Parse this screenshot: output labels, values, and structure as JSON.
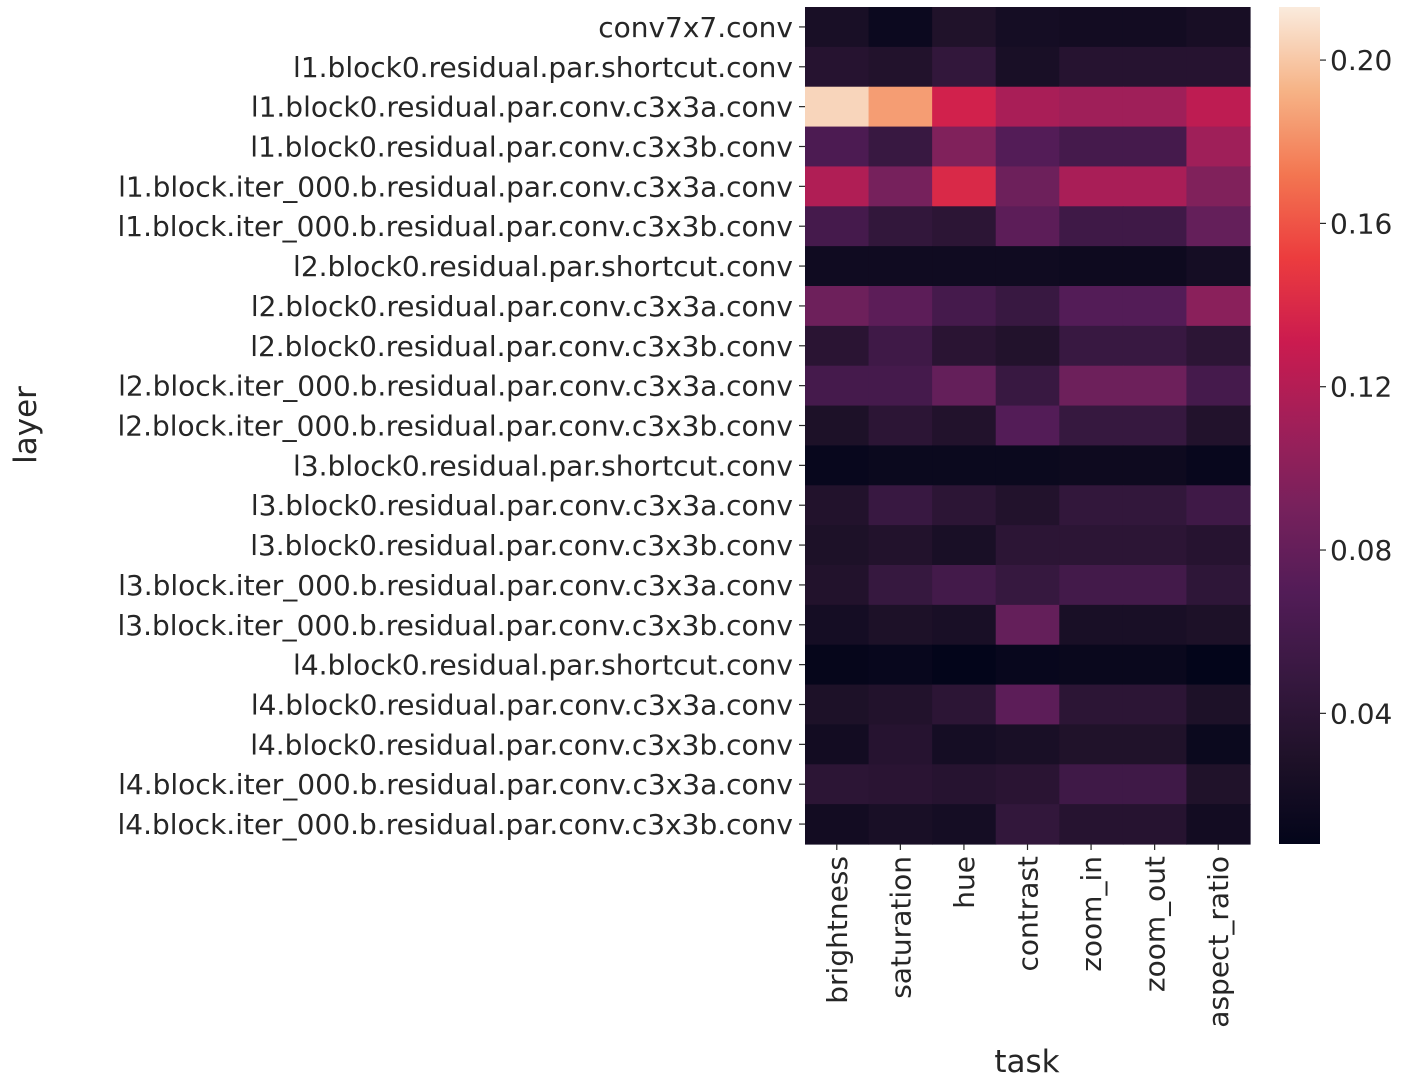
{
  "chart_data": {
    "type": "heatmap",
    "xlabel": "task",
    "ylabel": "layer",
    "x": [
      "brightness",
      "saturation",
      "hue",
      "contrast",
      "zoom_in",
      "zoom_out",
      "aspect_ratio"
    ],
    "y": [
      "conv7x7.conv",
      "l1.block0.residual.par.shortcut.conv",
      "l1.block0.residual.par.conv.c3x3a.conv",
      "l1.block0.residual.par.conv.c3x3b.conv",
      "l1.block.iter_000.b.residual.par.conv.c3x3a.conv",
      "l1.block.iter_000.b.residual.par.conv.c3x3b.conv",
      "l2.block0.residual.par.shortcut.conv",
      "l2.block0.residual.par.conv.c3x3a.conv",
      "l2.block0.residual.par.conv.c3x3b.conv",
      "l2.block.iter_000.b.residual.par.conv.c3x3a.conv",
      "l2.block.iter_000.b.residual.par.conv.c3x3b.conv",
      "l3.block0.residual.par.shortcut.conv",
      "l3.block0.residual.par.conv.c3x3a.conv",
      "l3.block0.residual.par.conv.c3x3b.conv",
      "l3.block.iter_000.b.residual.par.conv.c3x3a.conv",
      "l3.block.iter_000.b.residual.par.conv.c3x3b.conv",
      "l4.block0.residual.par.shortcut.conv",
      "l4.block0.residual.par.conv.c3x3a.conv",
      "l4.block0.residual.par.conv.c3x3b.conv",
      "l4.block.iter_000.b.residual.par.conv.c3x3a.conv",
      "l4.block.iter_000.b.residual.par.conv.c3x3b.conv"
    ],
    "values": [
      [
        0.025,
        0.015,
        0.03,
        0.022,
        0.02,
        0.02,
        0.024
      ],
      [
        0.035,
        0.032,
        0.045,
        0.025,
        0.035,
        0.035,
        0.035
      ],
      [
        0.205,
        0.185,
        0.135,
        0.115,
        0.11,
        0.11,
        0.125
      ],
      [
        0.065,
        0.05,
        0.095,
        0.07,
        0.06,
        0.06,
        0.11
      ],
      [
        0.118,
        0.09,
        0.14,
        0.085,
        0.115,
        0.115,
        0.095
      ],
      [
        0.06,
        0.045,
        0.04,
        0.075,
        0.055,
        0.055,
        0.08
      ],
      [
        0.018,
        0.018,
        0.018,
        0.018,
        0.016,
        0.016,
        0.022
      ],
      [
        0.085,
        0.075,
        0.06,
        0.05,
        0.07,
        0.07,
        0.1
      ],
      [
        0.038,
        0.055,
        0.038,
        0.032,
        0.05,
        0.05,
        0.04
      ],
      [
        0.06,
        0.06,
        0.08,
        0.05,
        0.085,
        0.085,
        0.06
      ],
      [
        0.028,
        0.04,
        0.032,
        0.07,
        0.048,
        0.048,
        0.032
      ],
      [
        0.012,
        0.014,
        0.014,
        0.014,
        0.016,
        0.016,
        0.012
      ],
      [
        0.032,
        0.05,
        0.04,
        0.032,
        0.045,
        0.045,
        0.055
      ],
      [
        0.028,
        0.032,
        0.025,
        0.04,
        0.04,
        0.04,
        0.035
      ],
      [
        0.032,
        0.048,
        0.058,
        0.048,
        0.058,
        0.058,
        0.042
      ],
      [
        0.022,
        0.028,
        0.025,
        0.08,
        0.025,
        0.025,
        0.028
      ],
      [
        0.01,
        0.012,
        0.008,
        0.012,
        0.013,
        0.013,
        0.008
      ],
      [
        0.028,
        0.032,
        0.04,
        0.075,
        0.04,
        0.04,
        0.028
      ],
      [
        0.02,
        0.035,
        0.022,
        0.025,
        0.03,
        0.03,
        0.014
      ],
      [
        0.04,
        0.038,
        0.035,
        0.038,
        0.055,
        0.055,
        0.03
      ],
      [
        0.02,
        0.025,
        0.022,
        0.045,
        0.035,
        0.035,
        0.02
      ]
    ],
    "colorbar": {
      "min": 0.008,
      "max": 0.213,
      "ticks": [
        0.04,
        0.08,
        0.12,
        0.16,
        0.2
      ],
      "tick_labels": [
        "0.04",
        "0.08",
        "0.12",
        "0.16",
        "0.20"
      ],
      "colormap": "rocket"
    }
  }
}
